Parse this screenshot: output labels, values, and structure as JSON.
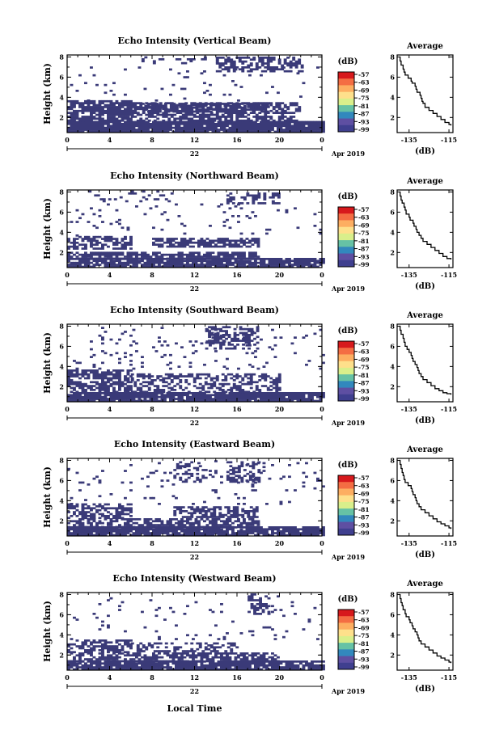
{
  "figure": {
    "x_title": "Local Time",
    "date_day": "22",
    "date_month_year": "Apr 2019",
    "colorbar_unit": "(dB)",
    "colorbar_ticks": [
      "-57",
      "-63",
      "-69",
      "-75",
      "-81",
      "-87",
      "-93",
      "-99"
    ],
    "colorbar_colors": [
      "#d7191c",
      "#f46d43",
      "#fdae61",
      "#fee08b",
      "#d9ef8b",
      "#66c2a5",
      "#3288bd",
      "#5e4fa2",
      "#3f3f8f"
    ],
    "fill_color": "#3a3a78"
  },
  "chart_data": [
    {
      "type": "heatmap",
      "title": "Echo Intensity (Vertical Beam)",
      "ylabel": "Height (km)",
      "x_ticks": [
        "0",
        "4",
        "8",
        "12",
        "16",
        "20",
        "0"
      ],
      "y_ticks": [
        "2",
        "4",
        "6",
        "8"
      ],
      "xlim": [
        0,
        24
      ],
      "ylim": [
        0.5,
        8.2
      ],
      "value_shown": "-99",
      "regions": [
        {
          "t0": 0,
          "t1": 24,
          "h0": 0.5,
          "h1": 1.6,
          "density": 0.95
        },
        {
          "t0": 0,
          "t1": 6,
          "h0": 1.6,
          "h1": 3.6,
          "density": 0.8
        },
        {
          "t0": 6,
          "t1": 22,
          "h0": 1.6,
          "h1": 3.4,
          "density": 0.6
        },
        {
          "t0": 7,
          "t1": 19,
          "h0": 2.5,
          "h1": 3.3,
          "density": 0.75
        },
        {
          "t0": 14,
          "t1": 22,
          "h0": 6.5,
          "h1": 7.9,
          "density": 0.55
        },
        {
          "t0": 7,
          "t1": 13,
          "h0": 7.3,
          "h1": 8.0,
          "density": 0.15
        },
        {
          "t0": 0,
          "t1": 24,
          "h0": 3.6,
          "h1": 7.0,
          "density": 0.04
        }
      ]
    },
    {
      "type": "heatmap",
      "title": "Echo Intensity (Northward Beam)",
      "ylabel": "Height (km)",
      "x_ticks": [
        "0",
        "4",
        "8",
        "12",
        "16",
        "20",
        "0"
      ],
      "y_ticks": [
        "2",
        "4",
        "6",
        "8"
      ],
      "xlim": [
        0,
        24
      ],
      "ylim": [
        0.5,
        8.2
      ],
      "value_shown": "-99",
      "regions": [
        {
          "t0": 0,
          "t1": 24,
          "h0": 0.5,
          "h1": 1.3,
          "density": 0.85
        },
        {
          "t0": 0,
          "t1": 18,
          "h0": 1.3,
          "h1": 2.0,
          "density": 0.75
        },
        {
          "t0": 0,
          "t1": 6,
          "h0": 2.3,
          "h1": 3.6,
          "density": 0.55
        },
        {
          "t0": 8,
          "t1": 18,
          "h0": 2.5,
          "h1": 3.4,
          "density": 0.75
        },
        {
          "t0": 15,
          "t1": 20,
          "h0": 6.8,
          "h1": 7.9,
          "density": 0.45
        },
        {
          "t0": 2,
          "t1": 10,
          "h0": 7.0,
          "h1": 8.0,
          "density": 0.15
        },
        {
          "t0": 0,
          "t1": 24,
          "h0": 3.6,
          "h1": 6.8,
          "density": 0.04
        }
      ]
    },
    {
      "type": "heatmap",
      "title": "Echo Intensity (Southward Beam)",
      "ylabel": "Height (km)",
      "x_ticks": [
        "0",
        "4",
        "8",
        "12",
        "16",
        "20",
        "0"
      ],
      "y_ticks": [
        "2",
        "4",
        "6",
        "8"
      ],
      "xlim": [
        0,
        24
      ],
      "ylim": [
        0.5,
        8.2
      ],
      "value_shown": "-99",
      "regions": [
        {
          "t0": 0,
          "t1": 24,
          "h0": 0.5,
          "h1": 1.4,
          "density": 0.9
        },
        {
          "t0": 0,
          "t1": 6,
          "h0": 1.4,
          "h1": 3.7,
          "density": 0.6
        },
        {
          "t0": 6,
          "t1": 20,
          "h0": 1.4,
          "h1": 3.3,
          "density": 0.5
        },
        {
          "t0": 13,
          "t1": 18,
          "h0": 5.7,
          "h1": 8.0,
          "density": 0.5
        },
        {
          "t0": 0,
          "t1": 24,
          "h0": 3.7,
          "h1": 7.9,
          "density": 0.05
        }
      ]
    },
    {
      "type": "heatmap",
      "title": "Echo Intensity (Eastward Beam)",
      "ylabel": "Height (km)",
      "x_ticks": [
        "0",
        "4",
        "8",
        "12",
        "16",
        "20",
        "0"
      ],
      "y_ticks": [
        "2",
        "4",
        "6",
        "8"
      ],
      "xlim": [
        0,
        24
      ],
      "ylim": [
        0.5,
        8.2
      ],
      "value_shown": "-99",
      "regions": [
        {
          "t0": 0,
          "t1": 24,
          "h0": 0.5,
          "h1": 1.3,
          "density": 0.9
        },
        {
          "t0": 0,
          "t1": 18,
          "h0": 1.3,
          "h1": 2.2,
          "density": 0.6
        },
        {
          "t0": 0,
          "t1": 6,
          "h0": 2.2,
          "h1": 3.6,
          "density": 0.55
        },
        {
          "t0": 10,
          "t1": 18,
          "h0": 2.3,
          "h1": 3.4,
          "density": 0.6
        },
        {
          "t0": 15,
          "t1": 18,
          "h0": 5.8,
          "h1": 7.8,
          "density": 0.5
        },
        {
          "t0": 10,
          "t1": 13,
          "h0": 5.8,
          "h1": 7.8,
          "density": 0.3
        },
        {
          "t0": 0,
          "t1": 24,
          "h0": 3.6,
          "h1": 7.9,
          "density": 0.04
        }
      ]
    },
    {
      "type": "heatmap",
      "title": "Echo Intensity (Westward Beam)",
      "ylabel": "Height (km)",
      "x_ticks": [
        "0",
        "4",
        "8",
        "12",
        "16",
        "20",
        "0"
      ],
      "y_ticks": [
        "2",
        "4",
        "6",
        "8"
      ],
      "xlim": [
        0,
        24
      ],
      "ylim": [
        0.5,
        8.2
      ],
      "value_shown": "-99",
      "regions": [
        {
          "t0": 0,
          "t1": 24,
          "h0": 0.5,
          "h1": 1.3,
          "density": 0.9
        },
        {
          "t0": 0,
          "t1": 20,
          "h0": 1.3,
          "h1": 2.2,
          "density": 0.6
        },
        {
          "t0": 0,
          "t1": 6,
          "h0": 2.2,
          "h1": 3.5,
          "density": 0.6
        },
        {
          "t0": 6,
          "t1": 16,
          "h0": 2.3,
          "h1": 3.2,
          "density": 0.4
        },
        {
          "t0": 17,
          "t1": 19,
          "h0": 6.0,
          "h1": 8.0,
          "density": 0.55
        },
        {
          "t0": 0,
          "t1": 24,
          "h0": 3.5,
          "h1": 7.9,
          "density": 0.04
        }
      ]
    },
    {
      "type": "line",
      "title": "Average",
      "xlabel": "(dB)",
      "x_ticks": [
        "-135",
        "-115"
      ],
      "y_ticks": [
        "2",
        "4",
        "6",
        "8"
      ],
      "xlim": [
        -141,
        -113
      ],
      "ylim": [
        0.5,
        8.2
      ],
      "x": [
        -140,
        -139.5,
        -139,
        -138,
        -137.5,
        -137,
        -135.5,
        -134,
        -133.5,
        -132,
        -131.5,
        -131,
        -129.5,
        -129,
        -128.5,
        -128,
        -127,
        -125,
        -123,
        -121,
        -119,
        -117,
        -115,
        -114
      ],
      "y": [
        8.0,
        7.6,
        7.2,
        6.8,
        6.5,
        6.2,
        5.9,
        5.6,
        5.4,
        5.1,
        4.8,
        4.5,
        4.2,
        3.9,
        3.6,
        3.4,
        3.0,
        2.7,
        2.4,
        2.1,
        1.8,
        1.5,
        1.3,
        1.2
      ]
    },
    {
      "type": "line",
      "title": "Average",
      "xlabel": "(dB)",
      "x_ticks": [
        "-135",
        "-115"
      ],
      "y_ticks": [
        "2",
        "4",
        "6",
        "8"
      ],
      "xlim": [
        -141,
        -113
      ],
      "ylim": [
        0.5,
        8.2
      ],
      "x": [
        -140,
        -139.5,
        -139,
        -138.5,
        -137.5,
        -137,
        -136.5,
        -135,
        -134.5,
        -133,
        -132.5,
        -131.5,
        -131,
        -130,
        -129,
        -128,
        -126,
        -124,
        -122,
        -120,
        -118,
        -116,
        -114
      ],
      "y": [
        8.0,
        7.6,
        7.2,
        6.9,
        6.5,
        6.2,
        5.8,
        5.5,
        5.2,
        4.9,
        4.6,
        4.3,
        4.0,
        3.7,
        3.4,
        3.1,
        2.8,
        2.5,
        2.2,
        1.9,
        1.6,
        1.4,
        1.3
      ]
    },
    {
      "type": "line",
      "title": "Average",
      "xlabel": "(dB)",
      "x_ticks": [
        "-135",
        "-115"
      ],
      "y_ticks": [
        "2",
        "4",
        "6",
        "8"
      ],
      "xlim": [
        -141,
        -113
      ],
      "ylim": [
        0.5,
        8.2
      ],
      "x": [
        -140,
        -139.5,
        -139,
        -138,
        -137.5,
        -137,
        -136,
        -135,
        -134,
        -133.5,
        -133,
        -132,
        -131,
        -130.5,
        -130,
        -129,
        -128,
        -126,
        -124,
        -122,
        -120,
        -118,
        -116,
        -114
      ],
      "y": [
        8.0,
        7.6,
        7.2,
        6.8,
        6.4,
        6.0,
        5.7,
        5.4,
        5.1,
        4.8,
        4.5,
        4.2,
        3.9,
        3.6,
        3.3,
        3.0,
        2.7,
        2.4,
        2.1,
        1.8,
        1.6,
        1.4,
        1.3,
        1.2
      ]
    },
    {
      "type": "line",
      "title": "Average",
      "xlabel": "(dB)",
      "x_ticks": [
        "-135",
        "-115"
      ],
      "y_ticks": [
        "2",
        "4",
        "6",
        "8"
      ],
      "xlim": [
        -141,
        -113
      ],
      "ylim": [
        0.5,
        8.2
      ],
      "x": [
        -140,
        -139.5,
        -139,
        -138.5,
        -138,
        -137.5,
        -137,
        -135.5,
        -134,
        -133.5,
        -133,
        -132,
        -131.5,
        -131,
        -130,
        -129,
        -127,
        -125,
        -123,
        -121,
        -119,
        -117,
        -115,
        -114
      ],
      "y": [
        8.0,
        7.6,
        7.2,
        6.8,
        6.5,
        6.1,
        5.8,
        5.5,
        5.2,
        4.9,
        4.6,
        4.3,
        4.0,
        3.7,
        3.4,
        3.1,
        2.8,
        2.5,
        2.2,
        1.9,
        1.7,
        1.5,
        1.3,
        1.2
      ]
    },
    {
      "type": "line",
      "title": "Average",
      "xlabel": "(dB)",
      "x_ticks": [
        "-135",
        "-115"
      ],
      "y_ticks": [
        "2",
        "4",
        "6",
        "8"
      ],
      "xlim": [
        -141,
        -113
      ],
      "ylim": [
        0.5,
        8.2
      ],
      "x": [
        -140,
        -139.5,
        -139,
        -138.5,
        -138,
        -137,
        -136.5,
        -135,
        -134.5,
        -133.5,
        -133,
        -132,
        -131,
        -130.5,
        -130,
        -129,
        -127,
        -125,
        -123,
        -121,
        -119,
        -117,
        -115,
        -114
      ],
      "y": [
        8.0,
        7.6,
        7.2,
        6.9,
        6.5,
        6.1,
        5.8,
        5.5,
        5.2,
        4.9,
        4.6,
        4.3,
        4.0,
        3.7,
        3.4,
        3.1,
        2.8,
        2.5,
        2.2,
        1.9,
        1.7,
        1.5,
        1.3,
        1.2
      ]
    }
  ]
}
